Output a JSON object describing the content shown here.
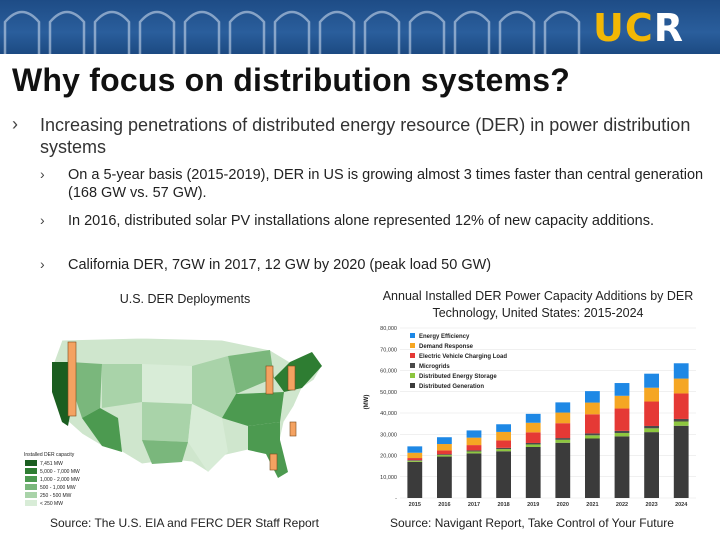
{
  "header": {
    "logo_main": "UC",
    "logo_accent": "R"
  },
  "slide": {
    "title": "Why focus on distribution systems?",
    "bullet_main": "Increasing penetrations of distributed energy resource (DER) in power distribution systems",
    "sub_bullets": [
      "On a 5-year basis (2015-2019), DER in US is growing almost 3 times faster than central generation (168 GW vs. 57 GW).",
      "In 2016, distributed solar PV installations alone represented 12% of new capacity additions.",
      "California DER, 7GW in 2017, 12 GW by 2020 (peak load 50 GW)"
    ]
  },
  "left_figure": {
    "caption": "U.S. DER Deployments",
    "source": "Source: The U.S. EIA and FERC DER Staff Report",
    "legend_title": "Installed DER capacity",
    "legend_items": [
      "7,451 MW",
      "5,000 - 7,000 MW",
      "1,000 - 2,000 MW",
      "500 - 1,000 MW",
      "250 - 500 MW",
      "< 250 MW"
    ],
    "colors": [
      "#1b5e20",
      "#2e7d32",
      "#4c9a50",
      "#7ab77c",
      "#a9d3a9",
      "#d8ecd7"
    ]
  },
  "right_figure": {
    "caption": "Annual Installed DER Power Capacity Additions by DER Technology, United States: 2015-2024",
    "source": "Source: Navigant Report, Take Control of Your Future"
  },
  "chart_data": {
    "type": "bar",
    "stacked": true,
    "ylabel": "(MW)",
    "ylim": [
      0,
      80000
    ],
    "yticks": [
      "-",
      "10,000",
      "20,000",
      "30,000",
      "40,000",
      "50,000",
      "60,000",
      "70,000",
      "80,000"
    ],
    "categories": [
      "2015",
      "2016",
      "2017",
      "2018",
      "2019",
      "2020",
      "2021",
      "2022",
      "2023",
      "2024"
    ],
    "legend_position": "top-left",
    "series": [
      {
        "name": "Distributed Generation",
        "color": "#3b3b3b",
        "values": [
          17000,
          19500,
          21000,
          22000,
          24000,
          26000,
          28000,
          29000,
          31000,
          34000
        ]
      },
      {
        "name": "Distributed Energy Storage",
        "color": "#8dc63f",
        "values": [
          500,
          700,
          900,
          1000,
          1200,
          1400,
          1500,
          1600,
          1800,
          2000
        ]
      },
      {
        "name": "Microgrids",
        "color": "#4a4a4a",
        "values": [
          300,
          400,
          500,
          600,
          700,
          800,
          900,
          1000,
          1100,
          1200
        ]
      },
      {
        "name": "Electric Vehicle Charging Load",
        "color": "#e53935",
        "values": [
          1000,
          1800,
          2500,
          3500,
          5000,
          7000,
          9000,
          10500,
          11500,
          12000
        ]
      },
      {
        "name": "Demand Response",
        "color": "#f5a623",
        "values": [
          2500,
          3000,
          3500,
          4000,
          4500,
          5000,
          5500,
          6000,
          6500,
          7000
        ]
      },
      {
        "name": "Energy Efficiency",
        "color": "#1e88e5",
        "values": [
          3000,
          3200,
          3400,
          3600,
          4200,
          4800,
          5400,
          6000,
          6600,
          7200
        ]
      }
    ]
  }
}
